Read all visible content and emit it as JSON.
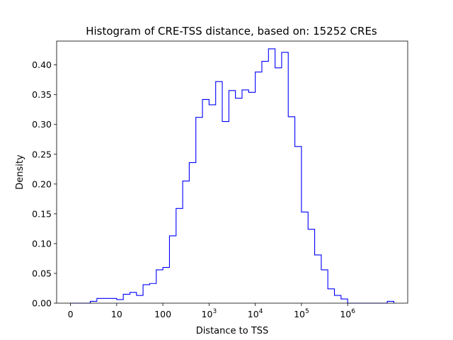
{
  "chart_data": {
    "type": "histogram",
    "title": "Histogram of CRE-TSS distance, based on: 15252 CREs",
    "xlabel": "Distance to TSS",
    "ylabel": "Density",
    "ylim": [
      0,
      0.44
    ],
    "xlim": [
      -0.3,
      7.3
    ],
    "x_scale": "symlog-style (log10(distance+1))",
    "grid": false,
    "legend": "none",
    "series_color": "#0000ff",
    "x_ticks": [
      {
        "value": 0,
        "label": "0"
      },
      {
        "value": 1,
        "label": "10"
      },
      {
        "value": 2,
        "label": "100"
      },
      {
        "value": 3,
        "label": "10",
        "exp": "3"
      },
      {
        "value": 4,
        "label": "10",
        "exp": "4"
      },
      {
        "value": 5,
        "label": "10",
        "exp": "5"
      },
      {
        "value": 6,
        "label": "10",
        "exp": "6"
      }
    ],
    "y_ticks": [
      {
        "value": 0.0,
        "label": "0.00"
      },
      {
        "value": 0.05,
        "label": "0.05"
      },
      {
        "value": 0.1,
        "label": "0.10"
      },
      {
        "value": 0.15,
        "label": "0.15"
      },
      {
        "value": 0.2,
        "label": "0.20"
      },
      {
        "value": 0.25,
        "label": "0.25"
      },
      {
        "value": 0.3,
        "label": "0.30"
      },
      {
        "value": 0.35,
        "label": "0.35"
      },
      {
        "value": 0.4,
        "label": "0.40"
      }
    ],
    "bin_edges": [
      0.0,
      0.143,
      0.286,
      0.429,
      0.571,
      0.714,
      0.857,
      1.0,
      1.143,
      1.286,
      1.429,
      1.571,
      1.714,
      1.857,
      2.0,
      2.143,
      2.286,
      2.429,
      2.571,
      2.714,
      2.857,
      3.0,
      3.143,
      3.286,
      3.429,
      3.571,
      3.714,
      3.857,
      4.0,
      4.143,
      4.286,
      4.429,
      4.571,
      4.714,
      4.857,
      5.0,
      5.143,
      5.286,
      5.429,
      5.571,
      5.714,
      5.857,
      6.0,
      6.143,
      6.286,
      6.429,
      6.571,
      6.714,
      6.857,
      7.0
    ],
    "values": [
      0.0,
      0.0,
      0.0,
      0.003,
      0.008,
      0.008,
      0.008,
      0.006,
      0.015,
      0.018,
      0.013,
      0.031,
      0.033,
      0.056,
      0.06,
      0.113,
      0.159,
      0.205,
      0.236,
      0.312,
      0.342,
      0.333,
      0.372,
      0.305,
      0.357,
      0.344,
      0.358,
      0.354,
      0.388,
      0.406,
      0.427,
      0.395,
      0.421,
      0.313,
      0.263,
      0.153,
      0.124,
      0.081,
      0.056,
      0.024,
      0.013,
      0.007,
      0.0,
      0.0,
      0.0,
      0.0,
      0.0,
      0.0,
      0.003
    ]
  }
}
